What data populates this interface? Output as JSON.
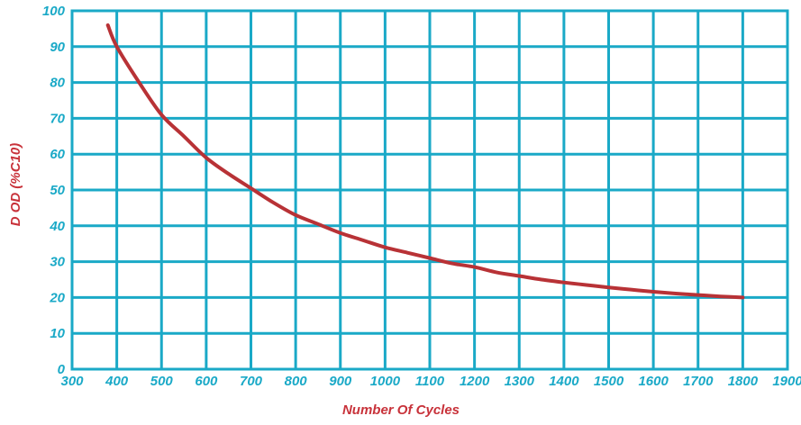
{
  "chart_data": {
    "type": "line",
    "title": "",
    "xlabel": "Number Of Cycles",
    "ylabel": "D OD (%C10)",
    "x_tick_labels": [
      "300",
      "400",
      "500",
      "600",
      "700",
      "800",
      "900",
      "1000",
      "1100",
      "1200",
      "1300",
      "1400",
      "1500",
      "1600",
      "1700",
      "1800",
      "1900"
    ],
    "y_tick_labels": [
      "0",
      "10",
      "20",
      "30",
      "40",
      "50",
      "60",
      "70",
      "80",
      "90",
      "100"
    ],
    "xlim": [
      300,
      1900
    ],
    "ylim": [
      0,
      100
    ],
    "grid": true,
    "series": [
      {
        "x": [
          380,
          400,
          450,
          500,
          550,
          600,
          650,
          700,
          750,
          800,
          850,
          900,
          950,
          1000,
          1050,
          1100,
          1150,
          1200,
          1250,
          1300,
          1350,
          1400,
          1450,
          1500,
          1550,
          1600,
          1650,
          1700,
          1750,
          1800
        ],
        "values": [
          96,
          90,
          80,
          71,
          65,
          59,
          54.5,
          50.5,
          46.5,
          43,
          40.5,
          38,
          36,
          34,
          32.5,
          31,
          29.5,
          28.5,
          27,
          26,
          25,
          24.2,
          23.5,
          22.8,
          22.2,
          21.6,
          21.1,
          20.7,
          20.3,
          20
        ]
      }
    ],
    "colors": {
      "grid": "#1aa9c7",
      "line": "#b83236",
      "axis_text": "#1aa9c7",
      "title_text": "#c8323a"
    }
  }
}
